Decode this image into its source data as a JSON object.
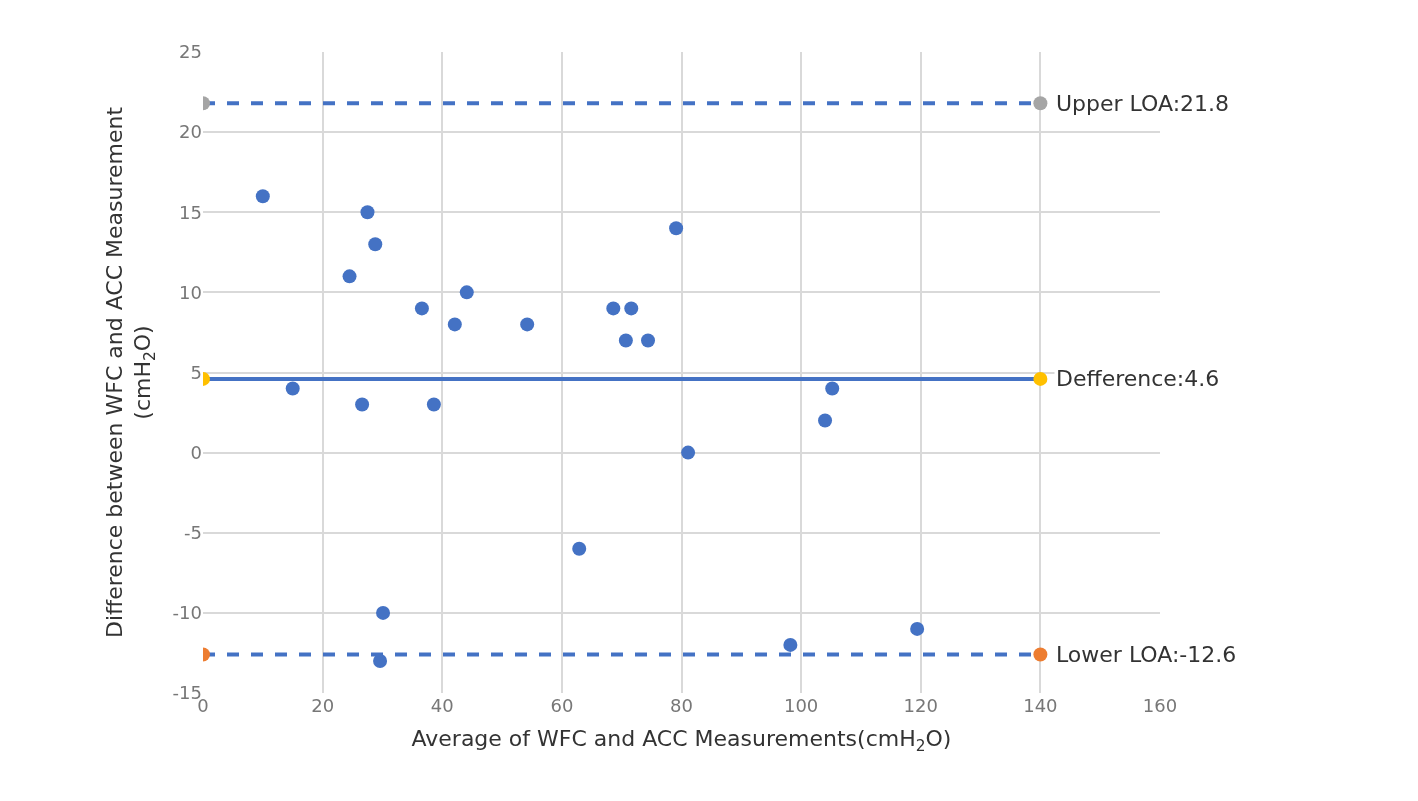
{
  "chart_data": {
    "type": "scatter",
    "xlabel": "Average of WFC and ACC Measurements(cmH$_{2}$O)",
    "ylabel": "Difference between WFC and ACC Measurement\n(cmH$_{2}$O)",
    "xlim": [
      0,
      160
    ],
    "xticks": [
      0,
      20,
      40,
      60,
      80,
      100,
      120,
      140,
      160
    ],
    "ylim": [
      -15,
      25
    ],
    "yticks": [
      -15,
      -10,
      -5,
      0,
      5,
      10,
      15,
      20,
      25
    ],
    "grid": true,
    "marker": "circle",
    "series": [
      {
        "color": "#4472c4",
        "x": [
          10,
          15,
          24.5,
          27.5,
          28.8,
          26.6,
          36.6,
          38.6,
          42.1,
          44.1,
          54.2,
          62.9,
          68.6,
          70.7,
          71.6,
          74.4,
          79.1,
          81.1,
          98.2,
          104,
          105.2,
          119.4,
          30.1,
          29.6
        ],
        "values": [
          16,
          4,
          11,
          15,
          13,
          3,
          9,
          3,
          8,
          10,
          8,
          -6,
          9,
          7,
          9,
          7,
          14,
          0,
          -12,
          2,
          4,
          -11,
          -10,
          -13
        ]
      },
      {
        "type": "line",
        "color": "#4472c4",
        "line_style": "dashed",
        "x": [
          0,
          140
        ],
        "values": [
          21.8,
          21.8
        ],
        "colors": [
          "#a5a5a5",
          "#a5a5a5"
        ]
      },
      {
        "type": "line",
        "color": "#4472c4",
        "line_style": "solid",
        "x": [
          0,
          140
        ],
        "values": [
          4.6,
          4.6
        ],
        "colors": [
          "#ffc000",
          "#ffc000"
        ]
      },
      {
        "type": "line",
        "color": "#4472c4",
        "line_style": "dashed",
        "x": [
          0,
          140
        ],
        "values": [
          -12.6,
          -12.6
        ],
        "colors": [
          "#ed7d31",
          "#ed7d31"
        ]
      }
    ],
    "annotations": [
      "Upper LOA:21.8",
      "Defference:4.6",
      "Lower LOA:-12.6"
    ]
  }
}
